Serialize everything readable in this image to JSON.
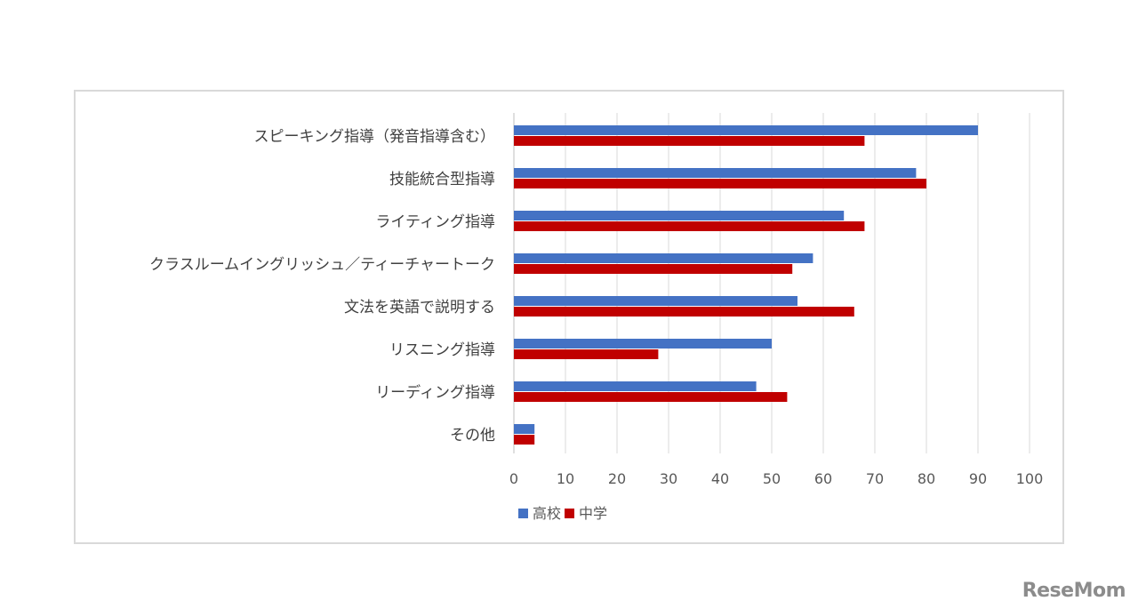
{
  "chart_data": {
    "type": "bar",
    "orientation": "horizontal",
    "title": "",
    "xlabel": "",
    "ylabel": "",
    "categories": [
      "スピーキング指導（発音指導含む）",
      "技能統合型指導",
      "ライティング指導",
      "クラスルームイングリッシュ／ティーチャートーク",
      "文法を英語で説明する",
      "リスニング指導",
      "リーディング指導",
      "その他"
    ],
    "series": [
      {
        "name": "高校",
        "color": "#4472c4",
        "values": [
          90,
          78,
          64,
          58,
          55,
          50,
          47,
          4
        ]
      },
      {
        "name": "中学",
        "color": "#c00000",
        "values": [
          68,
          80,
          68,
          54,
          66,
          28,
          53,
          4
        ]
      }
    ],
    "xlim": [
      0,
      100
    ],
    "xticks": [
      "0",
      "10",
      "20",
      "30",
      "40",
      "50",
      "60",
      "70",
      "80",
      "90",
      "100"
    ],
    "grid": true,
    "legend": "bottom-left"
  },
  "watermark": "ReseMom"
}
